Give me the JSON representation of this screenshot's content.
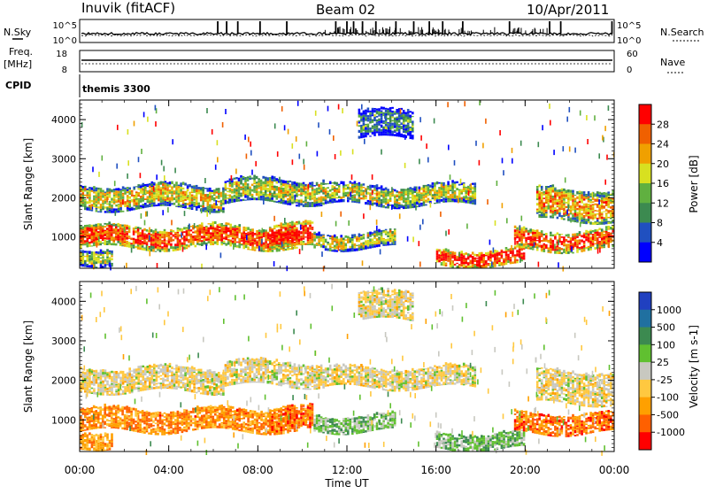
{
  "header": {
    "station": "Inuvik (fitACF)",
    "beam": "Beam 02",
    "date": "10/Apr/2011"
  },
  "top_panels": {
    "nsky_label": "N.Sky",
    "nsky_ticks": [
      "10^5",
      "10^0"
    ],
    "nsearch_label": "N.Search",
    "nsearch_ticks": [
      "10^5",
      "10^0"
    ],
    "freq_label": "Freq.",
    "freq_unit": "[MHz]",
    "freq_ticks": [
      "18",
      "8"
    ],
    "nave_label": "Nave",
    "nave_ticks": [
      "60",
      "0"
    ],
    "cpid_label": "CPID",
    "cpid_value": "themis 3300"
  },
  "x_axis": {
    "label": "Time UT",
    "ticks": [
      "00:00",
      "04:00",
      "08:00",
      "12:00",
      "16:00",
      "20:00",
      "00:00"
    ]
  },
  "colors": {
    "power": [
      "#0000ff",
      "#2050c0",
      "#3c8a50",
      "#60b040",
      "#d8e020",
      "#f0a000",
      "#f06000",
      "#ff0000"
    ],
    "velocity": [
      "#ff0000",
      "#ff6000",
      "#ffa000",
      "#ffc840",
      "#c8c8c0",
      "#60c030",
      "#3c8a50",
      "#2070a0",
      "#2040c0"
    ]
  },
  "chart_data": [
    {
      "type": "heatmap",
      "name": "power",
      "ylabel": "Slant Range [km]",
      "yticks": [
        "1000",
        "2000",
        "3000",
        "4000"
      ],
      "ylim": [
        200,
        4500
      ],
      "xlim": [
        0,
        24
      ],
      "colorbar_label": "Power [dB]",
      "colorbar_ticks": [
        "4",
        "8",
        "12",
        "16",
        "20",
        "24",
        "28"
      ],
      "bands": [
        {
          "t0": 0.0,
          "t1": 9.8,
          "r0": 700,
          "r1": 1250,
          "level": 0.85
        },
        {
          "t0": 8.5,
          "t1": 10.5,
          "r0": 700,
          "r1": 1300,
          "level": 0.95
        },
        {
          "t0": 10.5,
          "t1": 14.2,
          "r0": 700,
          "r1": 1100,
          "level": 0.55
        },
        {
          "t0": 0.0,
          "t1": 6.5,
          "r0": 1700,
          "r1": 2300,
          "level": 0.6
        },
        {
          "t0": 6.5,
          "t1": 11.0,
          "r0": 1850,
          "r1": 2450,
          "level": 0.55
        },
        {
          "t0": 11.0,
          "t1": 17.8,
          "r0": 1800,
          "r1": 2300,
          "level": 0.55
        },
        {
          "t0": 20.5,
          "t1": 24.0,
          "r0": 1400,
          "r1": 2200,
          "level": 0.7
        },
        {
          "t0": 16.0,
          "t1": 20.0,
          "r0": 250,
          "r1": 650,
          "level": 0.95
        },
        {
          "t0": 19.5,
          "t1": 24.0,
          "r0": 650,
          "r1": 1150,
          "level": 0.85
        },
        {
          "t0": 12.5,
          "t1": 15.0,
          "r0": 3500,
          "r1": 4200,
          "level": 0.3
        },
        {
          "t0": 0.0,
          "t1": 1.5,
          "r0": 300,
          "r1": 700,
          "level": 0.5
        }
      ]
    },
    {
      "type": "heatmap",
      "name": "velocity",
      "ylabel": "Slant Range [km]",
      "yticks": [
        "1000",
        "2000",
        "3000",
        "4000"
      ],
      "ylim": [
        200,
        4500
      ],
      "xlim": [
        0,
        24
      ],
      "colorbar_label": "Velocity [m s-1]",
      "colorbar_ticks": [
        "1000",
        "500",
        "100",
        "25",
        "-25",
        "-100",
        "-500",
        "-1000"
      ],
      "bands": [
        {
          "t0": 0.0,
          "t1": 9.8,
          "r0": 700,
          "r1": 1250,
          "level": 0.25
        },
        {
          "t0": 8.5,
          "t1": 10.5,
          "r0": 700,
          "r1": 1300,
          "level": 0.2
        },
        {
          "t0": 10.5,
          "t1": 14.2,
          "r0": 700,
          "r1": 1100,
          "level": 0.6
        },
        {
          "t0": 0.0,
          "t1": 6.5,
          "r0": 1700,
          "r1": 2300,
          "level": 0.45
        },
        {
          "t0": 6.5,
          "t1": 11.0,
          "r0": 1850,
          "r1": 2450,
          "level": 0.45
        },
        {
          "t0": 11.0,
          "t1": 17.8,
          "r0": 1800,
          "r1": 2300,
          "level": 0.45
        },
        {
          "t0": 20.5,
          "t1": 24.0,
          "r0": 1400,
          "r1": 2200,
          "level": 0.45
        },
        {
          "t0": 16.0,
          "t1": 20.0,
          "r0": 250,
          "r1": 650,
          "level": 0.62
        },
        {
          "t0": 19.5,
          "t1": 24.0,
          "r0": 650,
          "r1": 1150,
          "level": 0.2
        },
        {
          "t0": 12.5,
          "t1": 15.0,
          "r0": 3500,
          "r1": 4200,
          "level": 0.45
        },
        {
          "t0": 0.0,
          "t1": 1.5,
          "r0": 300,
          "r1": 700,
          "level": 0.3
        }
      ]
    }
  ]
}
